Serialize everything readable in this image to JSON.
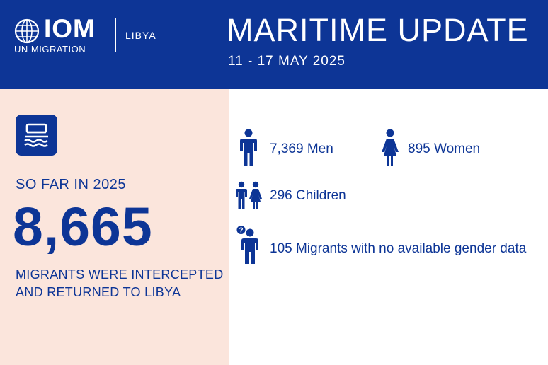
{
  "header": {
    "logo_text": "IOM",
    "logo_sub": "UN MIGRATION",
    "country": "LIBYA",
    "title": "MARITIME UPDATE",
    "date_range": "11 - 17 MAY 2025"
  },
  "summary": {
    "period_label": "SO FAR IN 2025",
    "total": "8,665",
    "description": "MIGRANTS WERE INTERCEPTED AND RETURNED TO LIBYA"
  },
  "breakdown": {
    "men": "7,369 Men",
    "women": "895 Women",
    "children": "296 Children",
    "unknown": "105 Migrants with no available gender data"
  },
  "colors": {
    "brand_blue": "#0d3596",
    "panel_pink": "#fbe5dc"
  },
  "icons": [
    "iom-globe-icon",
    "boat-icon",
    "man-icon",
    "woman-icon",
    "children-icon",
    "unknown-gender-icon"
  ]
}
